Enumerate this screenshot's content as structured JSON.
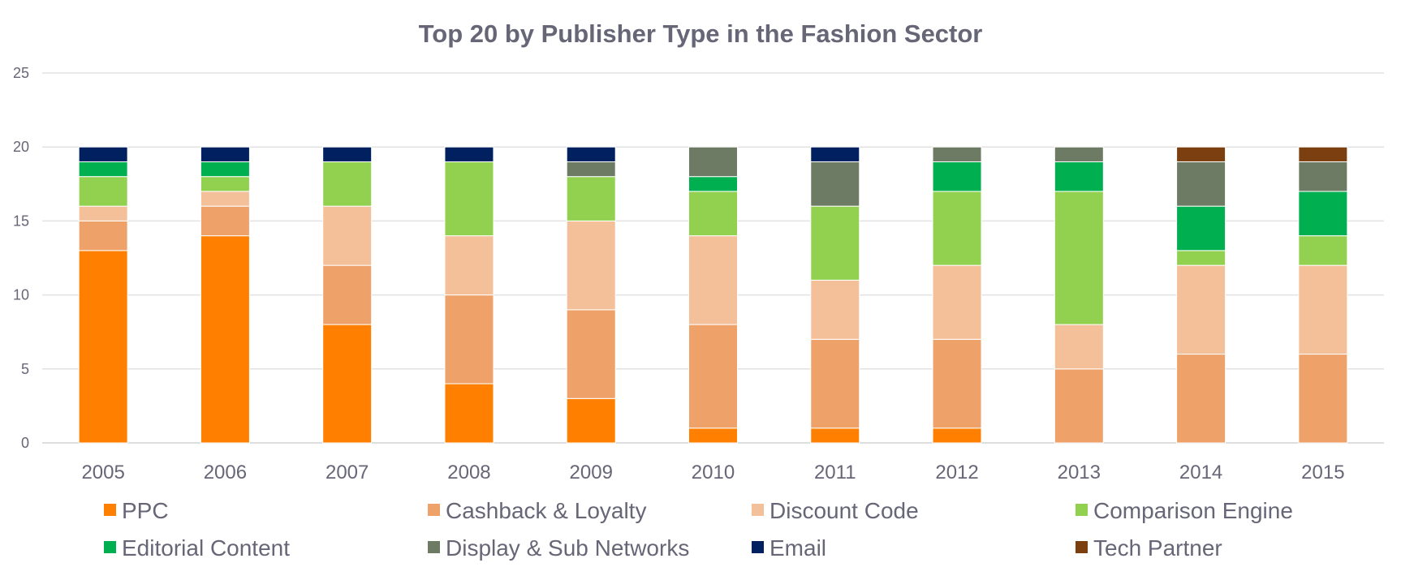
{
  "chart_data": {
    "type": "bar",
    "stacked": true,
    "title": "Top 20 by Publisher Type in the Fashion Sector",
    "xlabel": "",
    "ylabel": "",
    "ylim": [
      0,
      25
    ],
    "yticks": [
      0,
      5,
      10,
      15,
      20,
      25
    ],
    "grid": true,
    "legend_position": "bottom",
    "categories": [
      "2005",
      "2006",
      "2007",
      "2008",
      "2009",
      "2010",
      "2011",
      "2012",
      "2013",
      "2014",
      "2015"
    ],
    "series": [
      {
        "name": "PPC",
        "color": "#ff8000",
        "values": [
          13,
          14,
          8,
          4,
          3,
          1,
          1,
          1,
          0,
          0,
          0
        ]
      },
      {
        "name": "Cashback & Loyalty",
        "color": "#eea26a",
        "values": [
          2,
          2,
          4,
          6,
          6,
          7,
          6,
          6,
          5,
          6,
          6
        ]
      },
      {
        "name": "Discount Code",
        "color": "#f4c09a",
        "values": [
          1,
          1,
          4,
          4,
          6,
          6,
          4,
          5,
          3,
          6,
          6
        ]
      },
      {
        "name": "Comparison Engine",
        "color": "#92d050",
        "values": [
          2,
          1,
          3,
          5,
          3,
          3,
          5,
          5,
          9,
          1,
          2
        ]
      },
      {
        "name": "Editorial Content",
        "color": "#00b050",
        "values": [
          1,
          1,
          0,
          0,
          0,
          1,
          0,
          2,
          2,
          3,
          3
        ]
      },
      {
        "name": "Display & Sub Networks",
        "color": "#6e7b64",
        "values": [
          0,
          0,
          0,
          0,
          1,
          2,
          3,
          1,
          1,
          3,
          2
        ]
      },
      {
        "name": "Email",
        "color": "#002060",
        "values": [
          1,
          1,
          1,
          1,
          1,
          0,
          1,
          0,
          0,
          0,
          0
        ]
      },
      {
        "name": "Tech Partner",
        "color": "#7b3f10",
        "values": [
          0,
          0,
          0,
          0,
          0,
          0,
          0,
          0,
          0,
          1,
          1
        ]
      }
    ]
  }
}
